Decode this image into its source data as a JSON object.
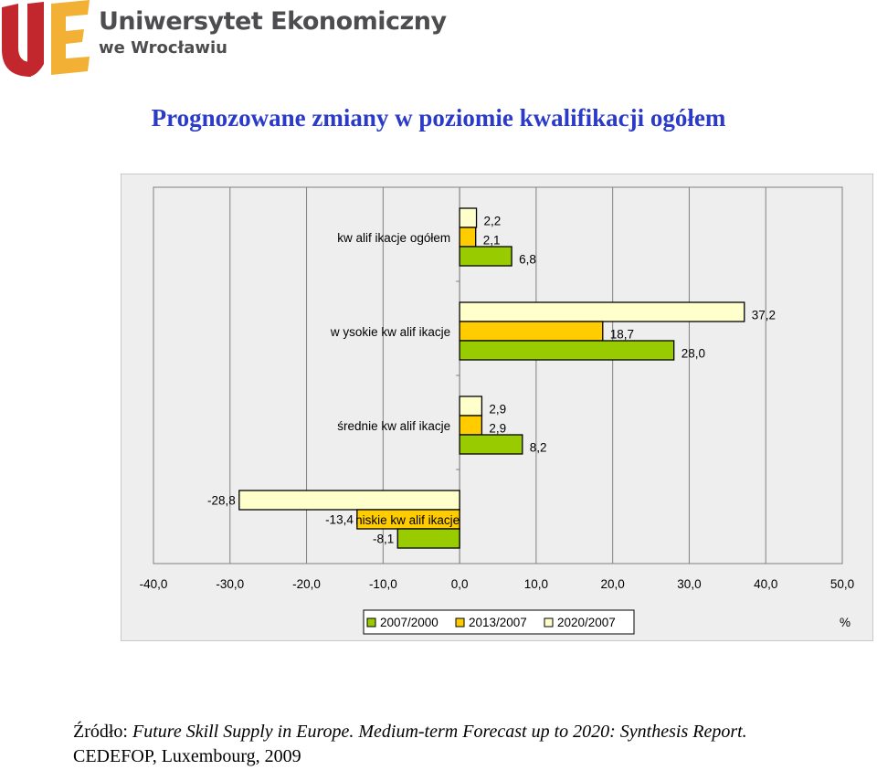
{
  "logo": {
    "line1": "Uniwersytet Ekonomiczny",
    "line2": "we Wrocławiu",
    "colors": {
      "u": "#c1272d",
      "e": "#f2b134",
      "text": "#4d4d4f"
    }
  },
  "title": "Prognozowane zmiany w poziomie kwalifikacji ogółem",
  "chart_data": {
    "type": "bar",
    "orientation": "horizontal",
    "categories": [
      "kw alif ikacje ogółem",
      "w ysokie kw alif ikacje",
      "średnie kw alif ikacje",
      "niskie kw alif ikacje"
    ],
    "series": [
      {
        "name": "2007/2000",
        "color": "#99cc00",
        "values": [
          6.8,
          28.0,
          8.2,
          -8.1
        ],
        "labels": [
          "6,8",
          "28,0",
          "8,2",
          "-8,1"
        ]
      },
      {
        "name": "2013/2007",
        "color": "#ffcc00",
        "values": [
          2.1,
          18.7,
          2.9,
          -13.4
        ],
        "labels": [
          "2,1",
          "18,7",
          "2,9",
          "-13,4"
        ]
      },
      {
        "name": "2020/2007",
        "color": "#ffffcc",
        "values": [
          2.2,
          37.2,
          2.9,
          -28.8
        ],
        "labels": [
          "2,2",
          "37,2",
          "2,9",
          "-28,8"
        ]
      }
    ],
    "xlim": [
      -40,
      50
    ],
    "xticks": [
      -40,
      -30,
      -20,
      -10,
      0,
      10,
      20,
      30,
      40,
      50
    ],
    "xtick_labels": [
      "-40,0",
      "-30,0",
      "-20,0",
      "-10,0",
      "0,0",
      "10,0",
      "20,0",
      "30,0",
      "40,0",
      "50,0"
    ],
    "xlabel": "%",
    "grid": true,
    "legend": "bottom-center",
    "background": "#eeeeee"
  },
  "source": {
    "prefix": "Źródło: ",
    "italic": "Future Skill Supply in Europe. Medium-term Forecast up to 2020: Synthesis Report.",
    "line2": "CEDEFOP, Luxembourg, 2009"
  }
}
